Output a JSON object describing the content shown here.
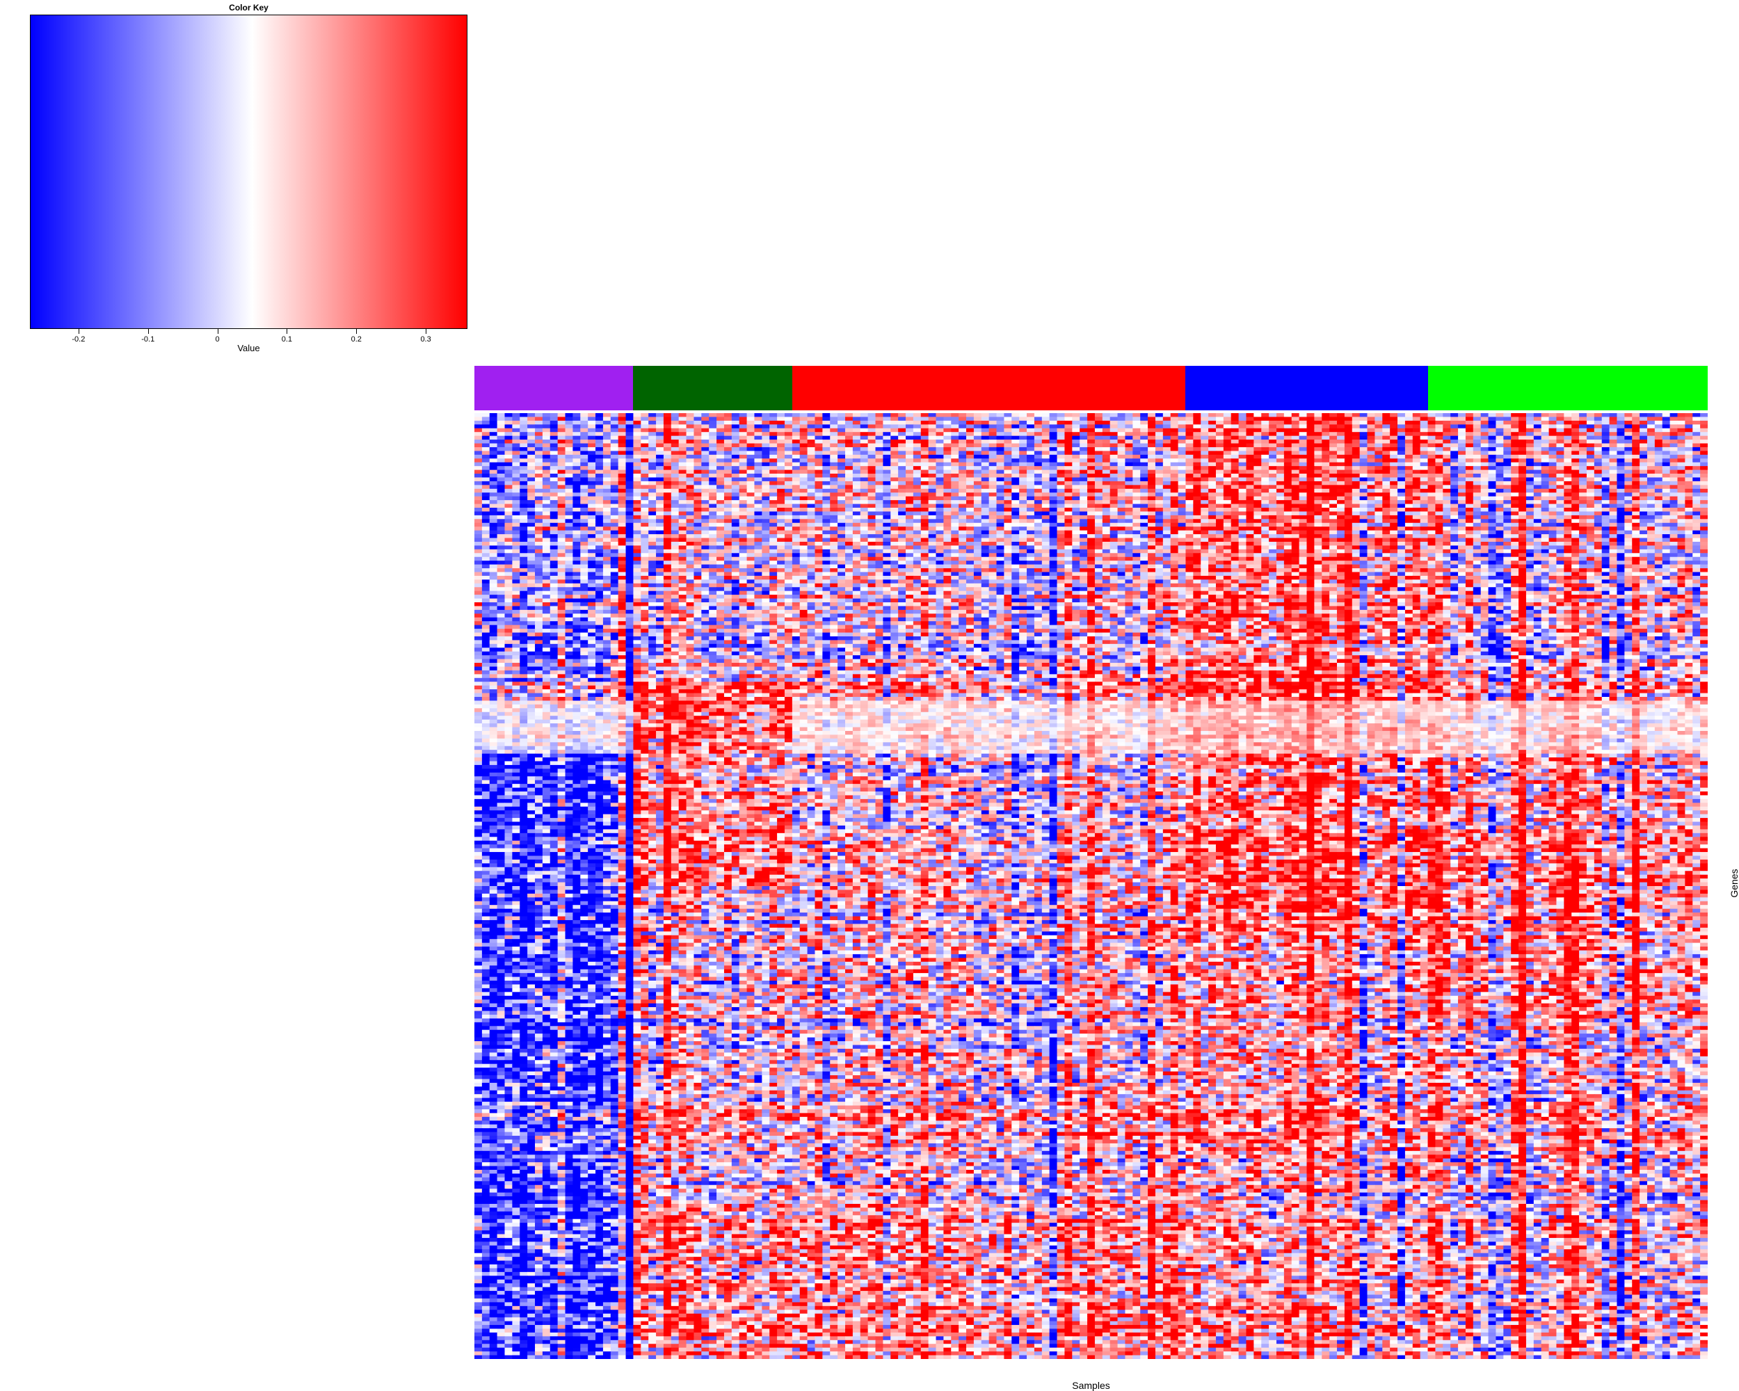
{
  "chart_data": {
    "type": "heatmap",
    "color_key": {
      "title": "Color Key",
      "xlabel": "Value",
      "range": [
        -0.27,
        0.36
      ],
      "colors": {
        "low": "#0000ff",
        "mid": "#ffffff",
        "high": "#ff0000"
      },
      "midpoint": 0.05,
      "ticks": [
        -0.2,
        -0.1,
        0,
        0.1,
        0.2,
        0.3
      ],
      "tick_labels": [
        "-0.2",
        "-0.1",
        "0",
        "0.1",
        "0.2",
        "0.3"
      ]
    },
    "column_groups": [
      {
        "color": "#a020f0",
        "n_samples": 21
      },
      {
        "color": "#006400",
        "n_samples": 21
      },
      {
        "color": "#ff0000",
        "n_samples": 52
      },
      {
        "color": "#0000ff",
        "n_samples": 32
      },
      {
        "color": "#00ff00",
        "n_samples": 37
      }
    ],
    "n_genes": 600,
    "xlabel": "Samples",
    "ylabel": "Genes"
  }
}
